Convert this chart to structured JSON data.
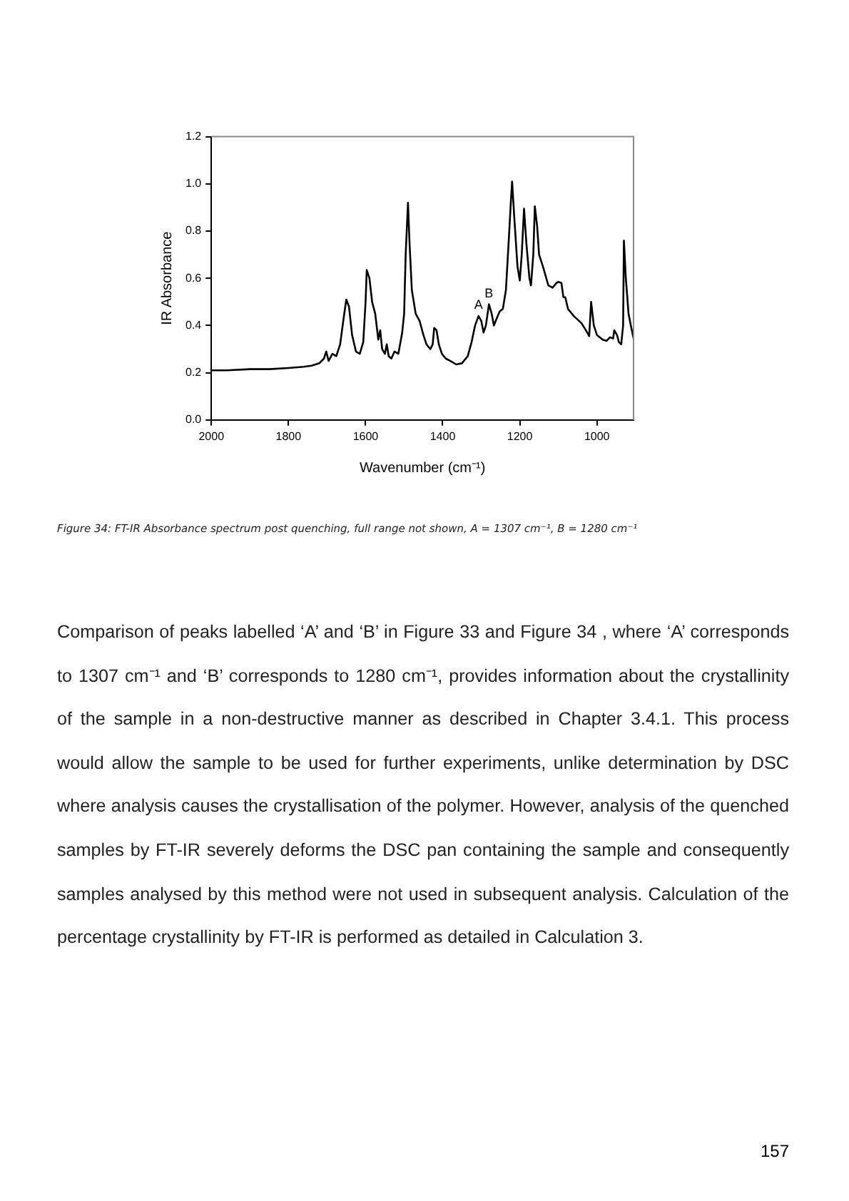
{
  "chart_data": {
    "type": "line",
    "xlabel": "Wavenumber (cm⁻¹)",
    "ylabel": "IR Absorbance",
    "x": [
      2000,
      1960,
      1900,
      1850,
      1800,
      1760,
      1740,
      1720,
      1708,
      1702,
      1696,
      1686,
      1676,
      1666,
      1657,
      1650,
      1643,
      1635,
      1625,
      1615,
      1606,
      1600,
      1597,
      1590,
      1583,
      1575,
      1567,
      1562,
      1557,
      1550,
      1545,
      1540,
      1533,
      1525,
      1515,
      1505,
      1500,
      1496,
      1490,
      1486,
      1480,
      1470,
      1460,
      1450,
      1442,
      1432,
      1426,
      1422,
      1416,
      1410,
      1402,
      1392,
      1380,
      1365,
      1350,
      1335,
      1325,
      1316,
      1307,
      1300,
      1294,
      1288,
      1280,
      1273,
      1267,
      1260,
      1252,
      1244,
      1236,
      1229,
      1224,
      1220,
      1214,
      1206,
      1200,
      1195,
      1189,
      1183,
      1175,
      1171,
      1165,
      1161,
      1155,
      1150,
      1140,
      1126,
      1115,
      1105,
      1100,
      1092,
      1087,
      1082,
      1075,
      1060,
      1040,
      1025,
      1020,
      1015,
      1008,
      1000,
      985,
      975,
      966,
      958,
      955,
      948,
      943,
      937,
      932,
      930,
      925,
      918,
      912,
      905
    ],
    "values": [
      0.21,
      0.21,
      0.215,
      0.215,
      0.22,
      0.225,
      0.23,
      0.24,
      0.26,
      0.29,
      0.25,
      0.28,
      0.27,
      0.32,
      0.43,
      0.51,
      0.48,
      0.36,
      0.29,
      0.28,
      0.33,
      0.5,
      0.635,
      0.6,
      0.5,
      0.45,
      0.34,
      0.38,
      0.3,
      0.28,
      0.32,
      0.27,
      0.26,
      0.29,
      0.28,
      0.37,
      0.45,
      0.7,
      0.92,
      0.75,
      0.55,
      0.45,
      0.42,
      0.36,
      0.32,
      0.3,
      0.32,
      0.39,
      0.38,
      0.32,
      0.28,
      0.26,
      0.25,
      0.235,
      0.24,
      0.27,
      0.33,
      0.4,
      0.44,
      0.42,
      0.37,
      0.4,
      0.49,
      0.45,
      0.4,
      0.43,
      0.46,
      0.47,
      0.55,
      0.75,
      0.9,
      1.01,
      0.85,
      0.65,
      0.59,
      0.7,
      0.895,
      0.75,
      0.6,
      0.57,
      0.7,
      0.905,
      0.82,
      0.7,
      0.65,
      0.57,
      0.56,
      0.58,
      0.585,
      0.58,
      0.52,
      0.52,
      0.47,
      0.44,
      0.41,
      0.37,
      0.355,
      0.5,
      0.4,
      0.36,
      0.34,
      0.335,
      0.35,
      0.345,
      0.38,
      0.36,
      0.33,
      0.32,
      0.4,
      0.76,
      0.6,
      0.45,
      0.4,
      0.345
    ],
    "color": "#000000",
    "marker": "none",
    "line_style": "solid",
    "grid": false,
    "legend": false,
    "xlim": [
      2000,
      905
    ],
    "xticks": [
      2000,
      1800,
      1600,
      1400,
      1200,
      1000
    ],
    "ylim": [
      0,
      1.2
    ],
    "yticks": [
      {
        "value": 0,
        "label": "0.0"
      },
      {
        "value": 0.2,
        "label": "0.2"
      },
      {
        "value": 0.4,
        "label": "0.4"
      },
      {
        "value": 0.6,
        "label": "0.6"
      },
      {
        "value": 0.8,
        "label": "0.8"
      },
      {
        "value": 1,
        "label": "1.0"
      },
      {
        "value": 1.2,
        "label": "1.2"
      }
    ],
    "annotations": [
      {
        "text": "A",
        "x": 1307,
        "y": 0.44
      },
      {
        "text": "B",
        "x": 1280,
        "y": 0.49
      },
      "Figure 34: FT-IR Absorbance spectrum post quenching, full range not shown, A = 1307 cm⁻¹, B = 1280 cm⁻¹",
      "Comparison of peaks labelled ‘A’ and ‘B’ in Figure 33 and Figure 34 , where ‘A’ corresponds to 1307 cm⁻¹ and ‘B’ corresponds to 1280 cm⁻¹, provides information about the crystallinity of the sample in a non-destructive manner as described in Chapter 3.4.1. This process would allow the sample to be used for further experiments, unlike determination by DSC where analysis causes the crystallisation of the polymer. However, analysis of the quenched samples by FT-IR severely deforms the DSC pan containing the sample and consequently samples analysed by this method were not used in subsequent analysis. Calculation of the percentage crystallinity by FT-IR is performed as detailed in Calculation 3.",
      "157"
    ]
  }
}
